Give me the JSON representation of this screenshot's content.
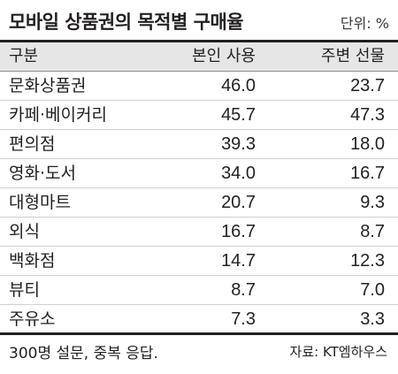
{
  "header": {
    "title": "모바일 상품권의 목적별 구매율",
    "unit": "단위: %"
  },
  "table": {
    "columns": [
      "구분",
      "본인 사용",
      "주변 선물"
    ],
    "rows": [
      {
        "label": "문화상품권",
        "self_use": "46.0",
        "gift": "23.7"
      },
      {
        "label": "카페·베이커리",
        "self_use": "45.7",
        "gift": "47.3"
      },
      {
        "label": "편의점",
        "self_use": "39.3",
        "gift": "18.0"
      },
      {
        "label": "영화·도서",
        "self_use": "34.0",
        "gift": "16.7"
      },
      {
        "label": "대형마트",
        "self_use": "20.7",
        "gift": "9.3"
      },
      {
        "label": "외식",
        "self_use": "16.7",
        "gift": "8.7"
      },
      {
        "label": "백화점",
        "self_use": "14.7",
        "gift": "12.3"
      },
      {
        "label": "뷰티",
        "self_use": "8.7",
        "gift": "7.0"
      },
      {
        "label": "주유소",
        "self_use": "7.3",
        "gift": "3.3"
      }
    ]
  },
  "footer": {
    "note": "300명 설문, 중복 응답.",
    "source": "자료: KT엠하우스"
  }
}
